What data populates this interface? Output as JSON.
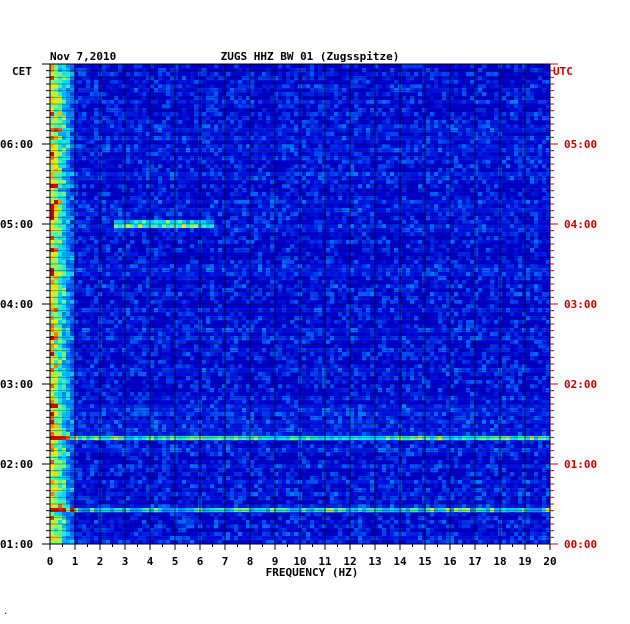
{
  "chart_data": {
    "type": "heatmap",
    "title_date": "Nov 7,2010",
    "title_station": "ZUGS HHZ BW 01 (Zugsspitze)",
    "left_axis_tz": "CET",
    "right_axis_tz": "UTC",
    "xlabel": "FREQUENCY (HZ)",
    "x_ticks": [
      "0",
      "1",
      "2",
      "3",
      "4",
      "5",
      "6",
      "7",
      "8",
      "9",
      "10",
      "11",
      "12",
      "13",
      "14",
      "15",
      "16",
      "17",
      "18",
      "19",
      "20"
    ],
    "xlim": [
      0,
      20
    ],
    "left_ticks": [
      "01:00",
      "02:00",
      "03:00",
      "04:00",
      "05:00",
      "06:00"
    ],
    "right_ticks": [
      "00:00",
      "01:00",
      "02:00",
      "03:00",
      "04:00",
      "05:00"
    ],
    "time_range_hours_cet": [
      1.0,
      7.0
    ],
    "colors": {
      "background_high_freq": "#0000c8",
      "low_freq_peak": "#ff0000",
      "right_axis_text": "#cc0000",
      "text": "#000000"
    },
    "features": [
      {
        "description": "strong low-frequency energy",
        "freq_range_hz": [
          0,
          1
        ]
      },
      {
        "description": "horizontal bright band",
        "time_cet": "01:25",
        "freq_range_hz": [
          0,
          20
        ]
      },
      {
        "description": "horizontal bright band",
        "time_cet": "02:20",
        "freq_range_hz": [
          0,
          20
        ]
      },
      {
        "description": "narrow signal",
        "time_cet": "05:00",
        "freq_range_hz": [
          2.6,
          6.5
        ]
      }
    ]
  },
  "footer_mark": "."
}
